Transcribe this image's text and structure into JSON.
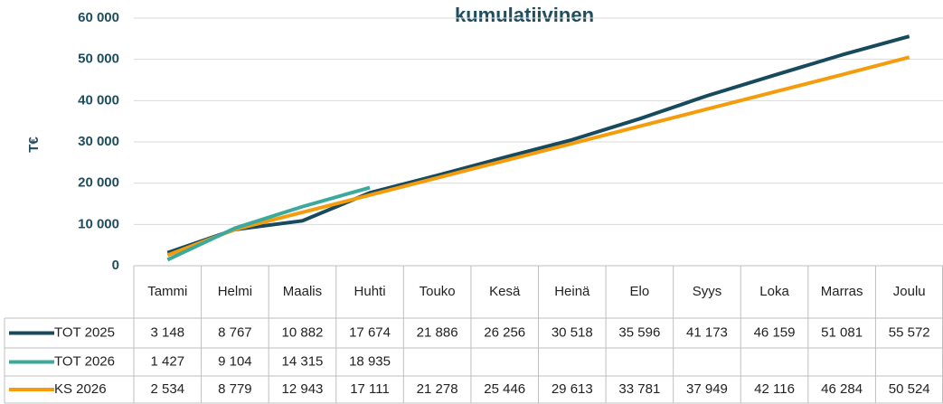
{
  "chart_data": {
    "type": "line",
    "title": "kumulatiivinen",
    "y_label": "T€",
    "categories": [
      "Tammi",
      "Helmi",
      "Maalis",
      "Huhti",
      "Touko",
      "Kesä",
      "Heinä",
      "Elo",
      "Syys",
      "Loka",
      "Marras",
      "Joulu"
    ],
    "series": [
      {
        "name": "TOT 2025",
        "color": "#174a5c",
        "values": [
          3148,
          8767,
          10882,
          17674,
          21886,
          26256,
          30518,
          35596,
          41173,
          46159,
          51081,
          55572
        ],
        "value_labels": [
          "3 148",
          "8 767",
          "10 882",
          "17 674",
          "21 886",
          "26 256",
          "30 518",
          "35 596",
          "41 173",
          "46 159",
          "51 081",
          "55 572"
        ]
      },
      {
        "name": "TOT 2026",
        "color": "#3ba99b",
        "values": [
          1427,
          9104,
          14315,
          18935,
          null,
          null,
          null,
          null,
          null,
          null,
          null,
          null
        ],
        "value_labels": [
          "1 427",
          "9 104",
          "14 315",
          "18 935",
          null,
          null,
          null,
          null,
          null,
          null,
          null,
          null
        ]
      },
      {
        "name": "KS 2026",
        "color": "#f59c0c",
        "values": [
          2534,
          8779,
          12943,
          17111,
          21278,
          25446,
          29613,
          33781,
          37949,
          42116,
          46284,
          50524
        ],
        "value_labels": [
          "2 534",
          "8 779",
          "12 943",
          "17 111",
          "21 278",
          "25 446",
          "29 613",
          "33 781",
          "37 949",
          "42 116",
          "46 284",
          "50 524"
        ]
      }
    ],
    "ylim": [
      0,
      60000
    ],
    "yticks": [
      {
        "value": 0,
        "label": "0"
      },
      {
        "value": 10000,
        "label": "10 000"
      },
      {
        "value": 20000,
        "label": "20 000"
      },
      {
        "value": 30000,
        "label": "30 000"
      },
      {
        "value": 40000,
        "label": "40 000"
      },
      {
        "value": 50000,
        "label": "50 000"
      },
      {
        "value": 60000,
        "label": "60 000"
      }
    ],
    "grid": true
  }
}
